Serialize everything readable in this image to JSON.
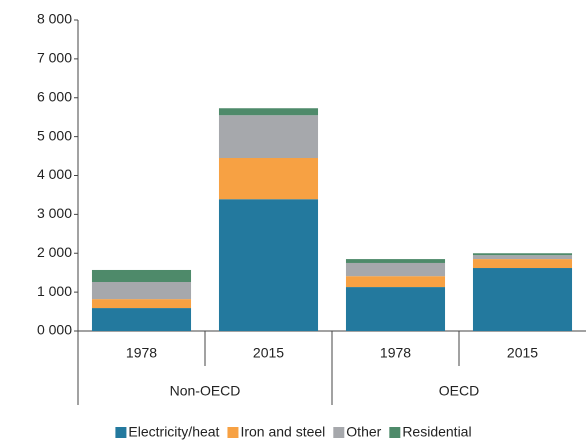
{
  "chart_data": {
    "type": "stacked_bar",
    "categories": [
      "1978",
      "2015",
      "1978",
      "2015"
    ],
    "groups": [
      "Non-OECD",
      "OECD"
    ],
    "series": [
      {
        "name": "Electricity/heat",
        "color": "#23799e",
        "values": [
          590,
          3390,
          1130,
          1620
        ]
      },
      {
        "name": "Iron and steel",
        "color": "#f7a143",
        "values": [
          230,
          1060,
          280,
          230
        ]
      },
      {
        "name": "Other",
        "color": "#a6a8ac",
        "values": [
          440,
          1100,
          340,
          100
        ]
      },
      {
        "name": "Residential",
        "color": "#4e8a6a",
        "values": [
          310,
          180,
          100,
          50
        ]
      }
    ],
    "ylim": [
      0,
      8000
    ],
    "yticks": [
      {
        "value": 0,
        "label": "0 000"
      },
      {
        "value": 1000,
        "label": "1 000"
      },
      {
        "value": 2000,
        "label": "2 000"
      },
      {
        "value": 3000,
        "label": "3 000"
      },
      {
        "value": 4000,
        "label": "4 000"
      },
      {
        "value": 5000,
        "label": "5 000"
      },
      {
        "value": 6000,
        "label": "6 000"
      },
      {
        "value": 7000,
        "label": "7 000"
      },
      {
        "value": 8000,
        "label": "8 000"
      }
    ],
    "legend": "bottom"
  }
}
